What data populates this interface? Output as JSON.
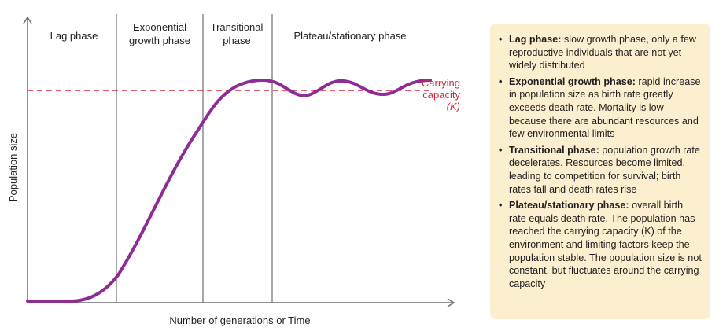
{
  "phases": [
    {
      "line1": "Lag phase",
      "line2": ""
    },
    {
      "line1": "Exponential",
      "line2": "growth phase"
    },
    {
      "line1": "Transitional",
      "line2": "phase"
    },
    {
      "line1": "Plateau/stationary phase",
      "line2": ""
    }
  ],
  "carrying_capacity_label": {
    "line1": "Carrying",
    "line2": "capacity",
    "line3": "(K)"
  },
  "axes": {
    "ylabel": "Population size",
    "xlabel": "Number of generations or Time"
  },
  "colors": {
    "curve": "#8e2c95",
    "carrying_line": "#d7263d",
    "axis": "#6d6e70",
    "box_bg": "#fcefcf"
  },
  "info": [
    {
      "term": "Lag phase:",
      "text": " slow growth phase, only a few reproductive individuals that are not yet widely distributed"
    },
    {
      "term": "Exponential growth phase:",
      "text": " rapid increase in population size as birth rate greatly exceeds death rate. Mortality is low because there are abundant resources and few environmental limits"
    },
    {
      "term": "Transitional phase:",
      "text": " population growth rate decelerates. Resources become limited, leading to competition for survival; birth rates fall and death rates rise"
    },
    {
      "term": "Plateau/stationary phase:",
      "text": " overall birth rate equals death rate. The population has reached the carrying capacity (K) of the environment and limiting factors keep the population stable. The population size is not constant, but fluctuates around the carrying capacity"
    }
  ]
}
